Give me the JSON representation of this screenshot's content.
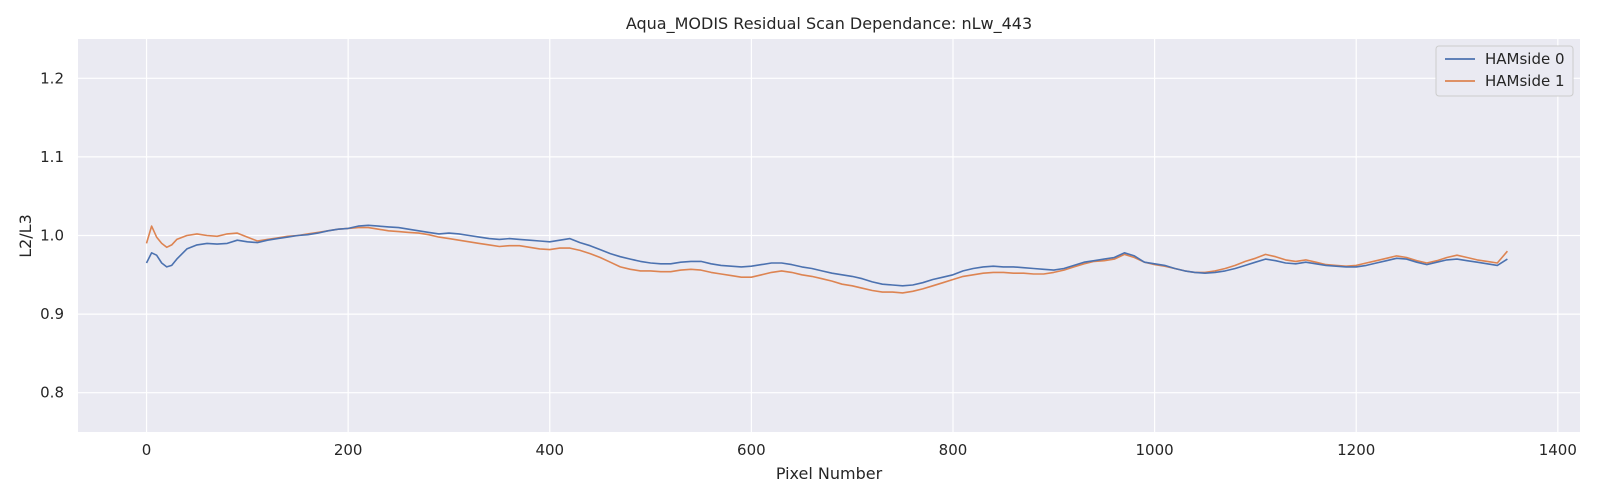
{
  "chart_data": {
    "type": "line",
    "title": "Aqua_MODIS Residual Scan Dependance: nLw_443",
    "xlabel": "Pixel Number",
    "ylabel": "L2/L3",
    "xlim": [
      -68,
      1422
    ],
    "ylim": [
      0.75,
      1.25
    ],
    "x_ticks": [
      0,
      200,
      400,
      600,
      800,
      1000,
      1200,
      1400
    ],
    "y_ticks": [
      0.8,
      0.9,
      1.0,
      1.1,
      1.2
    ],
    "x_tick_labels": [
      "0",
      "200",
      "400",
      "600",
      "800",
      "1000",
      "1200",
      "1400"
    ],
    "y_tick_labels": [
      "0.8",
      "0.9",
      "1.0",
      "1.1",
      "1.2"
    ],
    "grid": true,
    "legend_position": "top-right",
    "colors": {
      "background": "#eaeaf2",
      "grid": "#ffffff",
      "text": "#262626"
    },
    "series": [
      {
        "name": "HAMside 0",
        "color": "#4c72b0",
        "x": [
          0,
          5,
          10,
          15,
          20,
          25,
          30,
          40,
          50,
          60,
          70,
          80,
          90,
          100,
          110,
          120,
          130,
          140,
          150,
          160,
          170,
          180,
          190,
          200,
          210,
          220,
          230,
          240,
          250,
          260,
          270,
          280,
          290,
          300,
          310,
          320,
          330,
          340,
          350,
          360,
          370,
          380,
          390,
          400,
          410,
          420,
          430,
          440,
          450,
          460,
          470,
          480,
          490,
          500,
          510,
          520,
          530,
          540,
          550,
          560,
          570,
          580,
          590,
          600,
          610,
          620,
          630,
          640,
          650,
          660,
          670,
          680,
          690,
          700,
          710,
          720,
          730,
          740,
          750,
          760,
          770,
          780,
          790,
          800,
          810,
          820,
          830,
          840,
          850,
          860,
          870,
          880,
          890,
          900,
          910,
          920,
          930,
          940,
          950,
          960,
          970,
          980,
          990,
          1000,
          1010,
          1020,
          1030,
          1040,
          1050,
          1060,
          1070,
          1080,
          1090,
          1100,
          1110,
          1120,
          1130,
          1140,
          1150,
          1160,
          1170,
          1180,
          1190,
          1200,
          1210,
          1220,
          1230,
          1240,
          1250,
          1260,
          1270,
          1280,
          1290,
          1300,
          1310,
          1320,
          1330,
          1340,
          1350
        ],
        "values": [
          0.965,
          0.978,
          0.975,
          0.965,
          0.96,
          0.962,
          0.97,
          0.983,
          0.988,
          0.99,
          0.989,
          0.99,
          0.994,
          0.992,
          0.991,
          0.994,
          0.996,
          0.998,
          1.0,
          1.001,
          1.003,
          1.006,
          1.008,
          1.009,
          1.012,
          1.013,
          1.012,
          1.011,
          1.01,
          1.008,
          1.006,
          1.004,
          1.002,
          1.003,
          1.002,
          1.0,
          0.998,
          0.996,
          0.995,
          0.996,
          0.995,
          0.994,
          0.993,
          0.992,
          0.994,
          0.996,
          0.991,
          0.987,
          0.982,
          0.977,
          0.973,
          0.97,
          0.967,
          0.965,
          0.964,
          0.964,
          0.966,
          0.967,
          0.967,
          0.964,
          0.962,
          0.961,
          0.96,
          0.961,
          0.963,
          0.965,
          0.965,
          0.963,
          0.96,
          0.958,
          0.955,
          0.952,
          0.95,
          0.948,
          0.945,
          0.941,
          0.938,
          0.937,
          0.936,
          0.937,
          0.94,
          0.944,
          0.947,
          0.95,
          0.955,
          0.958,
          0.96,
          0.961,
          0.96,
          0.96,
          0.959,
          0.958,
          0.957,
          0.956,
          0.958,
          0.962,
          0.966,
          0.968,
          0.97,
          0.972,
          0.978,
          0.974,
          0.966,
          0.964,
          0.962,
          0.958,
          0.955,
          0.953,
          0.952,
          0.953,
          0.955,
          0.958,
          0.962,
          0.966,
          0.97,
          0.968,
          0.965,
          0.964,
          0.966,
          0.964,
          0.962,
          0.961,
          0.96,
          0.96,
          0.962,
          0.965,
          0.968,
          0.971,
          0.97,
          0.966,
          0.963,
          0.966,
          0.969,
          0.97,
          0.968,
          0.966,
          0.964,
          0.962,
          0.97
        ]
      },
      {
        "name": "HAMside 1",
        "color": "#dd8452",
        "x": [
          0,
          5,
          10,
          15,
          20,
          25,
          30,
          40,
          50,
          60,
          70,
          80,
          90,
          100,
          110,
          120,
          130,
          140,
          150,
          160,
          170,
          180,
          190,
          200,
          210,
          220,
          230,
          240,
          250,
          260,
          270,
          280,
          290,
          300,
          310,
          320,
          330,
          340,
          350,
          360,
          370,
          380,
          390,
          400,
          410,
          420,
          430,
          440,
          450,
          460,
          470,
          480,
          490,
          500,
          510,
          520,
          530,
          540,
          550,
          560,
          570,
          580,
          590,
          600,
          610,
          620,
          630,
          640,
          650,
          660,
          670,
          680,
          690,
          700,
          710,
          720,
          730,
          740,
          750,
          760,
          770,
          780,
          790,
          800,
          810,
          820,
          830,
          840,
          850,
          860,
          870,
          880,
          890,
          900,
          910,
          920,
          930,
          940,
          950,
          960,
          970,
          980,
          990,
          1000,
          1010,
          1020,
          1030,
          1040,
          1050,
          1060,
          1070,
          1080,
          1090,
          1100,
          1110,
          1120,
          1130,
          1140,
          1150,
          1160,
          1170,
          1180,
          1190,
          1200,
          1210,
          1220,
          1230,
          1240,
          1250,
          1260,
          1270,
          1280,
          1290,
          1300,
          1310,
          1320,
          1330,
          1340,
          1350
        ],
        "values": [
          0.99,
          1.012,
          0.998,
          0.99,
          0.985,
          0.988,
          0.995,
          1.0,
          1.002,
          1.0,
          0.999,
          1.002,
          1.003,
          0.998,
          0.993,
          0.995,
          0.997,
          0.999,
          1.0,
          1.002,
          1.004,
          1.006,
          1.008,
          1.009,
          1.01,
          1.01,
          1.008,
          1.006,
          1.005,
          1.004,
          1.003,
          1.001,
          0.998,
          0.996,
          0.994,
          0.992,
          0.99,
          0.988,
          0.986,
          0.987,
          0.987,
          0.985,
          0.983,
          0.982,
          0.984,
          0.984,
          0.981,
          0.977,
          0.972,
          0.966,
          0.96,
          0.957,
          0.955,
          0.955,
          0.954,
          0.954,
          0.956,
          0.957,
          0.956,
          0.953,
          0.951,
          0.949,
          0.947,
          0.947,
          0.95,
          0.953,
          0.955,
          0.953,
          0.95,
          0.948,
          0.945,
          0.942,
          0.938,
          0.936,
          0.933,
          0.93,
          0.928,
          0.928,
          0.927,
          0.929,
          0.932,
          0.936,
          0.94,
          0.944,
          0.948,
          0.95,
          0.952,
          0.953,
          0.953,
          0.952,
          0.952,
          0.951,
          0.951,
          0.953,
          0.956,
          0.96,
          0.964,
          0.967,
          0.968,
          0.97,
          0.976,
          0.972,
          0.966,
          0.963,
          0.961,
          0.958,
          0.955,
          0.953,
          0.953,
          0.955,
          0.958,
          0.962,
          0.967,
          0.971,
          0.976,
          0.973,
          0.969,
          0.967,
          0.969,
          0.966,
          0.963,
          0.962,
          0.961,
          0.962,
          0.965,
          0.968,
          0.971,
          0.974,
          0.972,
          0.968,
          0.965,
          0.968,
          0.972,
          0.975,
          0.972,
          0.969,
          0.967,
          0.965,
          0.98
        ]
      }
    ]
  }
}
